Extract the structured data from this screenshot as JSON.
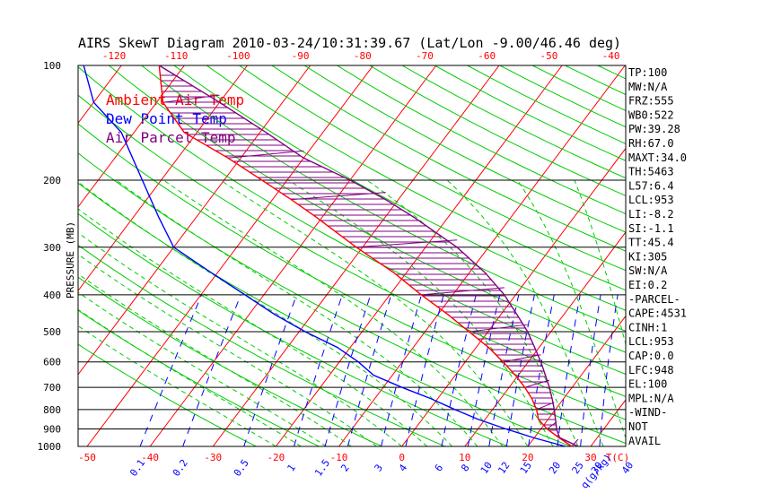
{
  "chart_data": {
    "type": "line",
    "title": "AIRS SkewT Diagram 2010-03-24/10:31:39.67 (Lat/Lon -9.00/46.46 deg)",
    "ylabel": "PRESSURE (MB)",
    "xlabel": "T(C)",
    "mixing_ratio_unit": "q(g/kg)",
    "ylim": [
      1000,
      100
    ],
    "y_scale": "log",
    "bottom_temp_ticks": [
      -50,
      -40,
      -30,
      -20,
      -10,
      0,
      10,
      20,
      30
    ],
    "top_temp_ticks": [
      -120,
      -110,
      -100,
      -90,
      -80,
      -70,
      -60,
      -50,
      -40
    ],
    "pressure_ticks": [
      100,
      200,
      300,
      400,
      500,
      600,
      700,
      800,
      900,
      1000
    ],
    "mixing_ratio_ticks": [
      "0.1",
      "0.2",
      "0.5",
      "1",
      "1.5",
      "2",
      "3",
      "4",
      "6",
      "8",
      "10",
      "12",
      "15",
      "20",
      "25",
      "30",
      "40"
    ],
    "legend": [
      {
        "label": "Ambient Air Temp",
        "color": "#ff0000"
      },
      {
        "label": "Dew Point Temp",
        "color": "#0000ff"
      },
      {
        "label": "Air Parcel Temp",
        "color": "#800080"
      }
    ],
    "series": [
      {
        "name": "Ambient Air Temp",
        "color": "#ff0000",
        "points": [
          [
            1000,
            27
          ],
          [
            950,
            24
          ],
          [
            900,
            21
          ],
          [
            850,
            18.5
          ],
          [
            800,
            17
          ],
          [
            750,
            15
          ],
          [
            700,
            12.5
          ],
          [
            650,
            9.5
          ],
          [
            600,
            6
          ],
          [
            550,
            2
          ],
          [
            500,
            -3
          ],
          [
            450,
            -8.5
          ],
          [
            400,
            -15
          ],
          [
            350,
            -22
          ],
          [
            300,
            -31
          ],
          [
            250,
            -41
          ],
          [
            225,
            -47
          ],
          [
            200,
            -54
          ],
          [
            175,
            -62
          ],
          [
            150,
            -72
          ],
          [
            125,
            -79
          ],
          [
            100,
            -84
          ]
        ]
      },
      {
        "name": "Dew Point Temp",
        "color": "#0000ff",
        "points": [
          [
            1000,
            26
          ],
          [
            950,
            20
          ],
          [
            900,
            14.5
          ],
          [
            850,
            9
          ],
          [
            800,
            4
          ],
          [
            750,
            -1
          ],
          [
            700,
            -7
          ],
          [
            650,
            -13
          ],
          [
            600,
            -17
          ],
          [
            550,
            -22
          ],
          [
            500,
            -29
          ],
          [
            450,
            -36
          ],
          [
            400,
            -43
          ],
          [
            350,
            -51
          ],
          [
            300,
            -60
          ],
          [
            250,
            -66
          ],
          [
            200,
            -73
          ],
          [
            150,
            -82
          ],
          [
            125,
            -90
          ],
          [
            100,
            -96
          ]
        ]
      },
      {
        "name": "Air Parcel Temp",
        "color": "#800080",
        "points": [
          [
            1000,
            28
          ],
          [
            948,
            24
          ],
          [
            900,
            22.5
          ],
          [
            850,
            21.2
          ],
          [
            800,
            19.8
          ],
          [
            750,
            18.2
          ],
          [
            700,
            16.4
          ],
          [
            650,
            14.3
          ],
          [
            600,
            12
          ],
          [
            550,
            9.3
          ],
          [
            500,
            6.3
          ],
          [
            450,
            2.5
          ],
          [
            400,
            -1.8
          ],
          [
            350,
            -7.5
          ],
          [
            300,
            -15
          ],
          [
            250,
            -25.5
          ],
          [
            225,
            -32
          ],
          [
            200,
            -40
          ],
          [
            175,
            -50
          ],
          [
            150,
            -59
          ],
          [
            125,
            -70
          ],
          [
            100,
            -84
          ]
        ]
      }
    ],
    "indices": [
      "TP:100",
      "MW:N/A",
      "FRZ:555",
      "WB0:522",
      "PW:39.28",
      "RH:67.0",
      "MAXT:34.0",
      "TH:5463",
      "L57:6.4",
      "LCL:953",
      "LI:-8.2",
      "SI:-1.1",
      "TT:45.4",
      "KI:305",
      "SW:N/A",
      "EI:0.2",
      "-PARCEL-",
      "CAPE:4531",
      "CINH:1",
      "LCL:953",
      "CAP:0.0",
      "LFC:948",
      "EL:100",
      "MPL:N/A",
      "-WIND-",
      "NOT",
      "AVAIL"
    ],
    "colors": {
      "isotherm": "#ff0000",
      "dry_adiabat": "#00cc00",
      "moist_adiabat": "#00cc00",
      "mixing_ratio": "#0000ff",
      "cape_hatch": "#800080",
      "frame": "#000000"
    }
  }
}
